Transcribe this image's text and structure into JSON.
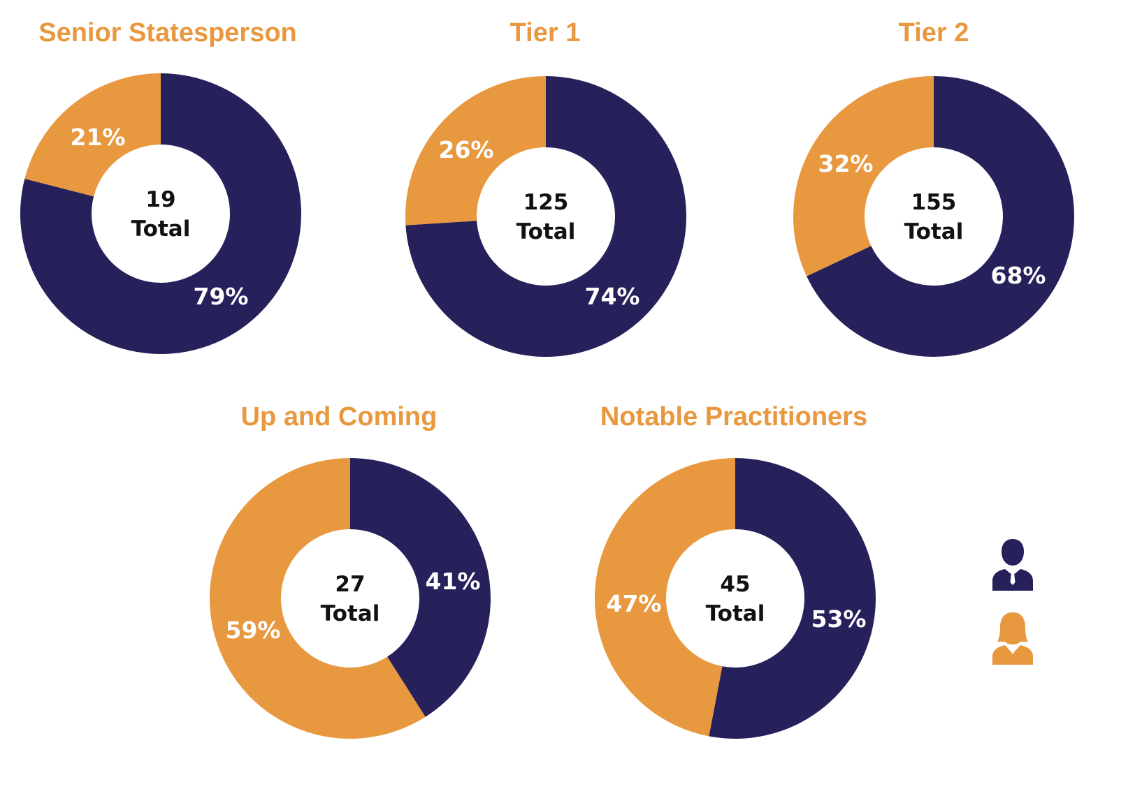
{
  "colors": {
    "male": "#27215b",
    "female": "#e8983f",
    "center": "#ffffff",
    "center_text": "#111111",
    "pct_text": "#ffffff"
  },
  "legend": [
    {
      "icon": "male-person-icon",
      "color": "#27215b"
    },
    {
      "icon": "female-person-icon",
      "color": "#e8983f"
    }
  ],
  "chart_data": [
    {
      "type": "pie",
      "title": "Senior Statesperson",
      "total": "19",
      "total_label": "Total",
      "slices": [
        {
          "color": "#27215b",
          "value": 79,
          "label": "79%"
        },
        {
          "color": "#e8983f",
          "value": 21,
          "label": "21%"
        }
      ]
    },
    {
      "type": "pie",
      "title": "Tier 1",
      "total": "125",
      "total_label": "Total",
      "slices": [
        {
          "color": "#27215b",
          "value": 74,
          "label": "74%"
        },
        {
          "color": "#e8983f",
          "value": 26,
          "label": "26%"
        }
      ]
    },
    {
      "type": "pie",
      "title": "Tier 2",
      "total": "155",
      "total_label": "Total",
      "slices": [
        {
          "color": "#27215b",
          "value": 68,
          "label": "68%"
        },
        {
          "color": "#e8983f",
          "value": 32,
          "label": "32%"
        }
      ]
    },
    {
      "type": "pie",
      "title": "Up and Coming",
      "total": "27",
      "total_label": "Total",
      "slices": [
        {
          "color": "#27215b",
          "value": 41,
          "label": "41%"
        },
        {
          "color": "#e8983f",
          "value": 59,
          "label": "59%"
        }
      ]
    },
    {
      "type": "pie",
      "title": "Notable Practitioners",
      "total": "45",
      "total_label": "Total",
      "slices": [
        {
          "color": "#27215b",
          "value": 53,
          "label": "53%"
        },
        {
          "color": "#e8983f",
          "value": 47,
          "label": "47%"
        }
      ]
    }
  ]
}
